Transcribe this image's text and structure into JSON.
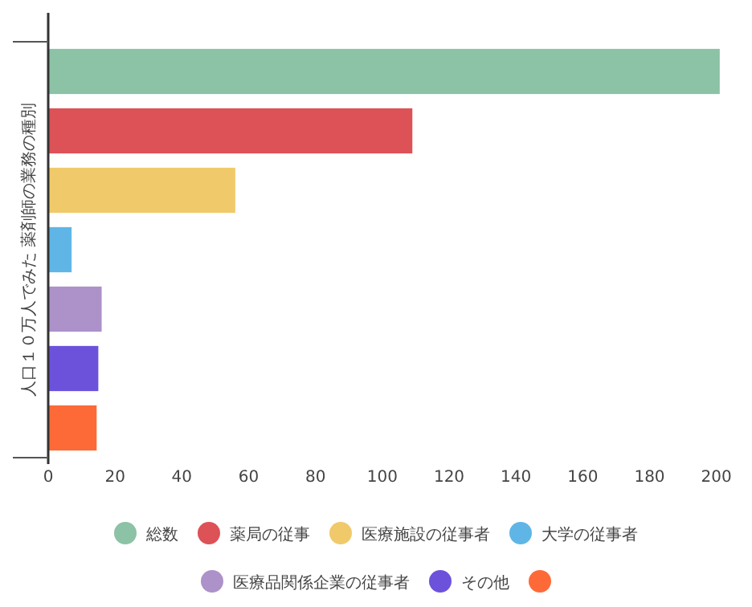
{
  "chart_data": {
    "type": "bar",
    "orientation": "horizontal",
    "ylabel": "人口１０万人でみた 薬剤師の業務の種別",
    "categories": [
      null,
      null,
      null,
      null,
      null,
      null,
      null
    ],
    "series": [
      {
        "name": "総数",
        "color": "#8cc2a5",
        "values": [
          201,
          null,
          null,
          null,
          null,
          null,
          null
        ]
      },
      {
        "name": "薬局の従事",
        "color": "#dc5257",
        "values": [
          null,
          109,
          null,
          null,
          null,
          null,
          null
        ]
      },
      {
        "name": "医療施設の従事者",
        "color": "#f0ca6a",
        "values": [
          null,
          null,
          56,
          null,
          null,
          null,
          null
        ]
      },
      {
        "name": "大学の従事者",
        "color": "#5fb6e6",
        "values": [
          null,
          null,
          null,
          7,
          null,
          null,
          null
        ]
      },
      {
        "name": "医療品関係企業の従事者",
        "color": "#ad91c9",
        "values": [
          null,
          null,
          null,
          null,
          16,
          null,
          null
        ]
      },
      {
        "name": "その他",
        "color": "#6c52db",
        "values": [
          null,
          null,
          null,
          null,
          null,
          15,
          null
        ]
      },
      {
        "color": "#fd6a38",
        "values": [
          null,
          null,
          null,
          null,
          null,
          null,
          14.5
        ]
      }
    ],
    "xlim": [
      0,
      202
    ],
    "xticks": [
      0,
      20,
      40,
      60,
      80,
      100,
      120,
      140,
      160,
      180,
      200
    ],
    "tick_labels": "x",
    "legend": "bottom"
  }
}
